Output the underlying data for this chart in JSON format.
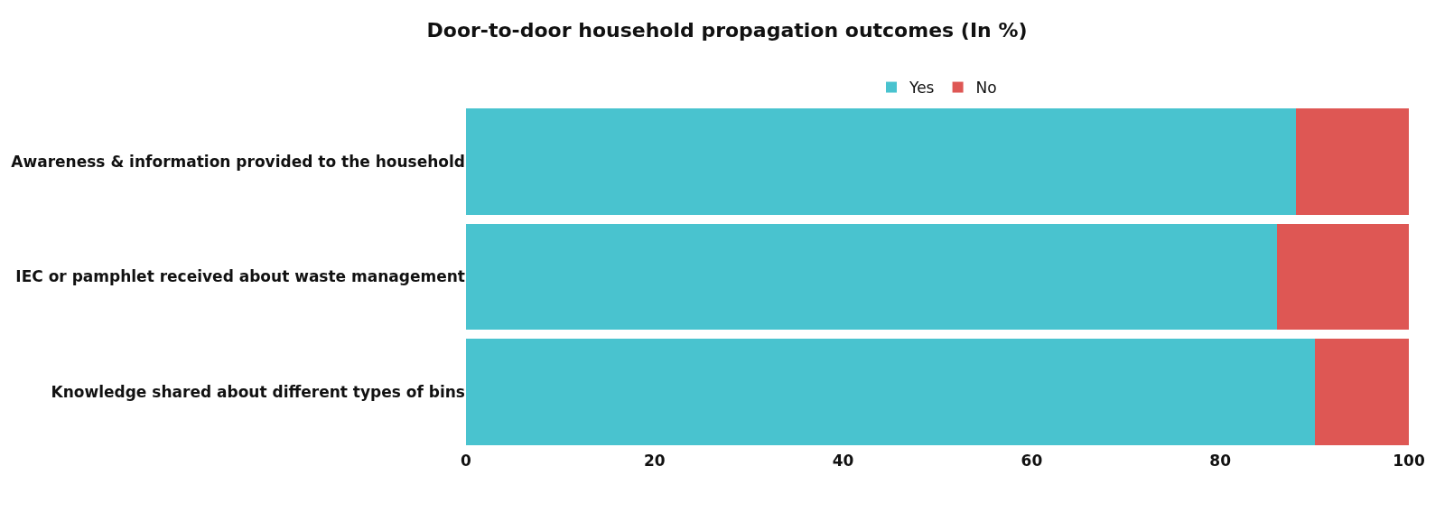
{
  "chart_data": {
    "type": "bar",
    "orientation": "horizontal",
    "stacked": true,
    "title": "Door-to-door household propagation outcomes (In %)",
    "categories": [
      "Awareness & information provided to the household",
      "IEC or pamphlet received about waste management",
      "Knowledge shared about different types of bins"
    ],
    "series": [
      {
        "name": "Yes",
        "color": "#49c3cf",
        "values": [
          88,
          86,
          90
        ]
      },
      {
        "name": "No",
        "color": "#de5754",
        "values": [
          12,
          14,
          10
        ]
      }
    ],
    "xlim": [
      0,
      100
    ],
    "xticks": [
      0,
      20,
      40,
      60,
      80,
      100
    ],
    "legend": "top"
  }
}
